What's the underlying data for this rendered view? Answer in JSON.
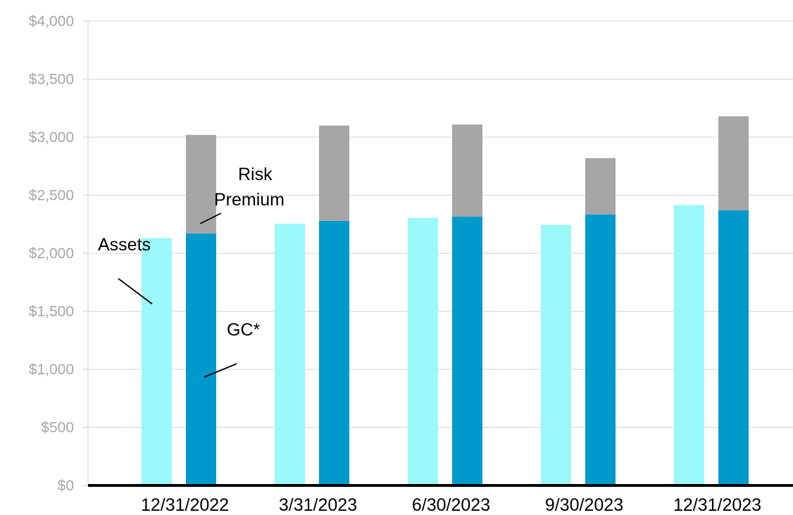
{
  "chart_data": {
    "type": "bar",
    "title": "",
    "xlabel": "",
    "ylabel": "",
    "categories": [
      "12/31/2022",
      "3/31/2023",
      "6/30/2023",
      "9/30/2023",
      "12/31/2023"
    ],
    "ylim": [
      0,
      4000
    ],
    "ytick_step": 500,
    "ytick_labels": [
      "$0",
      "$500",
      "$1,000",
      "$1,500",
      "$2,000",
      "$2,500",
      "$3,000",
      "$3,500",
      "$4,000"
    ],
    "grid": true,
    "legend": "none",
    "series": [
      {
        "name": "Assets",
        "values": [
          2130,
          2255,
          2305,
          2245,
          2415
        ],
        "color": "#99f8f8",
        "stack": "assets"
      },
      {
        "name": "GC*",
        "values": [
          2170,
          2280,
          2315,
          2335,
          2370
        ],
        "color": "#0099cc",
        "stack": "liabilities"
      },
      {
        "name": "Risk Premium",
        "values": [
          850,
          820,
          795,
          485,
          810
        ],
        "color": "#a6a6a6",
        "stack": "liabilities"
      }
    ],
    "annotations": [
      {
        "id": "assets",
        "text": "Assets"
      },
      {
        "id": "gc",
        "text": "GC*"
      },
      {
        "id": "risk-1",
        "text": "Risk"
      },
      {
        "id": "risk-2",
        "text": "Premium"
      }
    ]
  },
  "colors": {
    "grid": "#d9d9d9",
    "axis": "#000000",
    "ytick_text": "#a6a6a6"
  }
}
